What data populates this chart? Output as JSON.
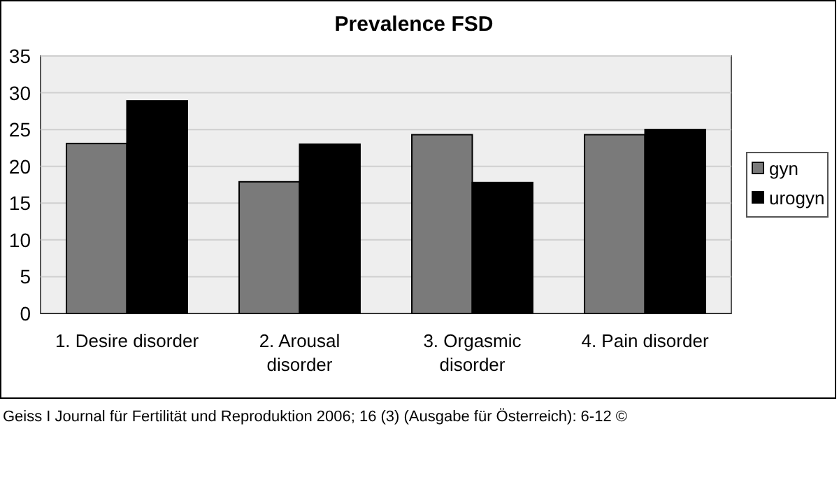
{
  "chart_data": {
    "type": "bar",
    "title": "Prevalence FSD",
    "categories": [
      "1. Desire disorder",
      "2. Arousal disorder",
      "3. Orgasmic disorder",
      "4. Pain disorder"
    ],
    "series": [
      {
        "name": "gyn",
        "color": "#7a7a7a",
        "values": [
          23.1,
          17.9,
          24.3,
          24.3
        ]
      },
      {
        "name": "urogyn",
        "color": "#000000",
        "values": [
          28.9,
          23.0,
          17.8,
          25.0
        ]
      }
    ],
    "ylim": [
      0,
      35
    ],
    "yticks": [
      0,
      5,
      10,
      15,
      20,
      25,
      30,
      35
    ],
    "grid": "y",
    "legend": "right",
    "annotations": [
      "Geiss I Journal für Fertilität und Reproduktion 2006; 16 (3) (Ausgabe für Österreich): 6-12 ©"
    ]
  }
}
